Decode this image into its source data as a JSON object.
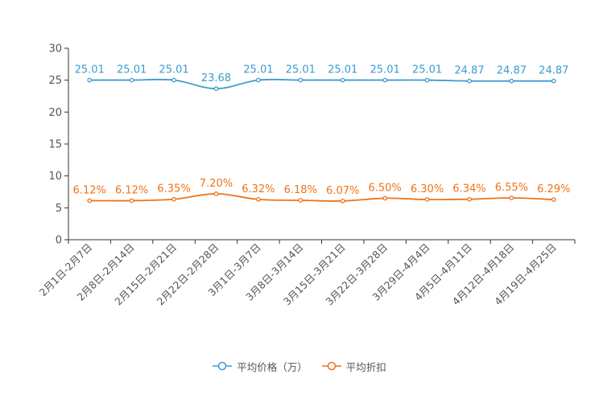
{
  "chart_data": {
    "type": "line",
    "categories": [
      "2月1日-2月7日",
      "2月8日-2月14日",
      "2月15日-2月21日",
      "2月22日-2月28日",
      "3月1日-3月7日",
      "3月8日-3月14日",
      "3月15日-3月21日",
      "3月22日-3月28日",
      "3月29日-4月4日",
      "4月5日-4月11日",
      "4月12日-4月18日",
      "4月19日-4月25日"
    ],
    "ylim": [
      0,
      30
    ],
    "yticks": [
      0,
      5,
      10,
      15,
      20,
      25,
      30
    ],
    "grid": false,
    "legend_position": "bottom-center",
    "series": [
      {
        "name": "平均价格（万）",
        "color": "#3d9bd1",
        "values": [
          25.01,
          25.01,
          25.01,
          23.68,
          25.01,
          25.01,
          25.01,
          25.01,
          25.01,
          24.87,
          24.87,
          24.87
        ],
        "labels": [
          "25.01",
          "25.01",
          "25.01",
          "23.68",
          "25.01",
          "25.01",
          "25.01",
          "25.01",
          "25.01",
          "24.87",
          "24.87",
          "24.87"
        ]
      },
      {
        "name": "平均折扣",
        "color": "#f07318",
        "values": [
          6.12,
          6.12,
          6.35,
          7.2,
          6.32,
          6.18,
          6.07,
          6.5,
          6.3,
          6.34,
          6.55,
          6.29
        ],
        "labels": [
          "6.12%",
          "6.12%",
          "6.35%",
          "7.20%",
          "6.32%",
          "6.18%",
          "6.07%",
          "6.50%",
          "6.30%",
          "6.34%",
          "6.55%",
          "6.29%"
        ]
      }
    ]
  }
}
